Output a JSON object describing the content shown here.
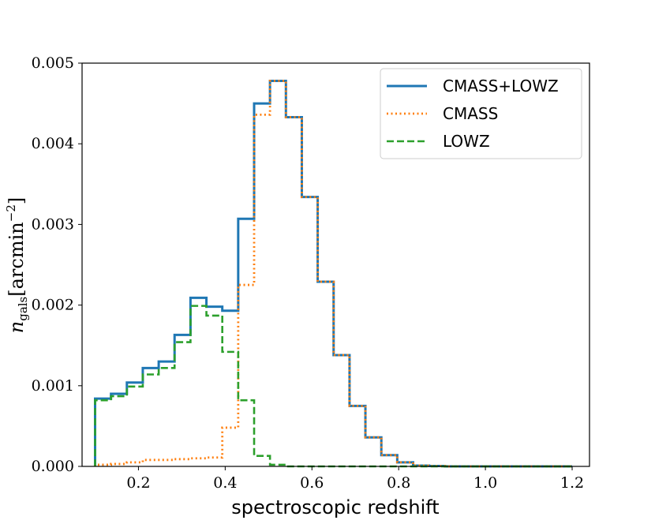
{
  "chart_data": {
    "type": "step-histogram",
    "title": "",
    "xlabel": "spectroscopic redshift",
    "ylabel": {
      "symbol": "n",
      "subscript": "gals",
      "units_main": "[arcmin",
      "units_sup": "−2",
      "units_close": "]"
    },
    "xlim": [
      0.07,
      1.24
    ],
    "ylim": [
      0,
      0.005
    ],
    "xticks": [
      0.2,
      0.4,
      0.6,
      0.8,
      1.0,
      1.2
    ],
    "xtick_labels": [
      "0.2",
      "0.4",
      "0.6",
      "0.8",
      "1.0",
      "1.2"
    ],
    "yticks": [
      0,
      0.001,
      0.002,
      0.003,
      0.004,
      0.005
    ],
    "ytick_labels": [
      "0.000",
      "0.001",
      "0.002",
      "0.003",
      "0.004",
      "0.005"
    ],
    "bin_edges": [
      0.1,
      0.1367,
      0.1733,
      0.21,
      0.2467,
      0.2833,
      0.32,
      0.3567,
      0.3933,
      0.43,
      0.4667,
      0.5033,
      0.54,
      0.5767,
      0.6133,
      0.65,
      0.6867,
      0.7233,
      0.76,
      0.7967,
      0.8333,
      0.87,
      0.9067,
      0.9433,
      0.98,
      1.0167,
      1.0533,
      1.09,
      1.1267,
      1.1633,
      1.2
    ],
    "legend_position": "upper right",
    "series": [
      {
        "name": "CMASS+LOWZ",
        "color": "#1f77b4",
        "style": "solid",
        "values": [
          0.00084,
          0.0009,
          0.00104,
          0.00122,
          0.0013,
          0.00163,
          0.00209,
          0.00198,
          0.00193,
          0.00307,
          0.0045,
          0.00478,
          0.00433,
          0.00334,
          0.00229,
          0.00138,
          0.00075,
          0.00036,
          0.00014,
          5e-05,
          1e-05,
          5e-06,
          0,
          0,
          0,
          0,
          0,
          0,
          0,
          0
        ]
      },
      {
        "name": "CMASS",
        "color": "#ff7f0e",
        "style": "dotted",
        "values": [
          2e-05,
          3e-05,
          5e-05,
          8e-05,
          8e-05,
          9e-05,
          0.0001,
          0.00011,
          0.00048,
          0.00225,
          0.00436,
          0.00478,
          0.00433,
          0.00334,
          0.00229,
          0.00138,
          0.00075,
          0.00036,
          0.00014,
          5e-05,
          1e-05,
          5e-06,
          0,
          0,
          0,
          0,
          0,
          0,
          0,
          0
        ]
      },
      {
        "name": "LOWZ",
        "color": "#2ca02c",
        "style": "dashed",
        "values": [
          0.00082,
          0.00087,
          0.00099,
          0.00114,
          0.00122,
          0.00154,
          0.00199,
          0.00187,
          0.00142,
          0.00082,
          0.00013,
          2e-05,
          0,
          0,
          0,
          0,
          0,
          0,
          0,
          0,
          0,
          0,
          0,
          0,
          0,
          0,
          0,
          0,
          0,
          0
        ]
      }
    ]
  }
}
